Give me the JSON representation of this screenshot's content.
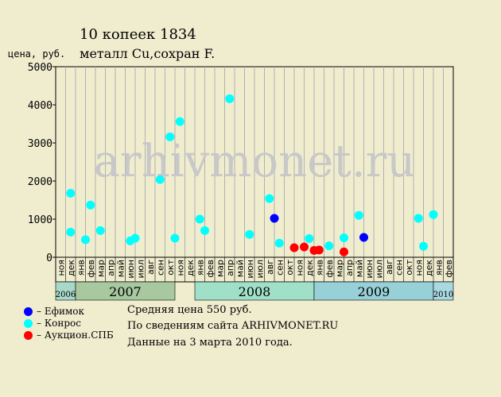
{
  "chart_data": {
    "type": "scatter",
    "title": "10 копеек 1834",
    "subtitle": "металл Cu,сохран F.",
    "ylabel": "цена, руб.",
    "ylim": [
      0,
      5000
    ],
    "yticks": [
      0,
      1000,
      2000,
      3000,
      4000,
      5000
    ],
    "watermark": "arhivmonet.ru",
    "months": [
      "ноя",
      "дек",
      "янв",
      "фев",
      "мар",
      "апр",
      "май",
      "июн",
      "июл",
      "авг",
      "сен",
      "окт",
      "ноя",
      "дек",
      "янв",
      "фев",
      "мар",
      "апр",
      "май",
      "июн",
      "июл",
      "авг",
      "сен",
      "окт",
      "ноя",
      "дек",
      "янв",
      "фев",
      "мар",
      "апр",
      "май",
      "июн",
      "июл",
      "авг",
      "сен",
      "окт",
      "ноя",
      "дек",
      "янв",
      "фев"
    ],
    "years": [
      {
        "label": "2006",
        "start": 0,
        "end": 2,
        "color": "#a8d8c8",
        "small": true
      },
      {
        "label": "2007",
        "start": 2,
        "end": 12,
        "color": "#a8c8a0",
        "small": false
      },
      {
        "label": "2008",
        "start": 14,
        "end": 26,
        "color": "#a0e0c8",
        "small": false
      },
      {
        "label": "2009",
        "start": 26,
        "end": 38,
        "color": "#98d0d8",
        "small": false
      },
      {
        "label": "2010",
        "start": 38,
        "end": 40,
        "color": "#a8d8e0",
        "small": true
      }
    ],
    "series": [
      {
        "name": "Ефимок",
        "color": "#0000ff",
        "points": [
          [
            21.5,
            1020
          ],
          [
            30.5,
            520
          ]
        ]
      },
      {
        "name": "Конрос",
        "color": "#00ffff",
        "points": [
          [
            1,
            1680
          ],
          [
            1,
            660
          ],
          [
            2.5,
            460
          ],
          [
            3,
            1370
          ],
          [
            4,
            700
          ],
          [
            7,
            430
          ],
          [
            7.5,
            500
          ],
          [
            10,
            2040
          ],
          [
            11,
            3160
          ],
          [
            11.5,
            500
          ],
          [
            12,
            3560
          ],
          [
            14,
            1000
          ],
          [
            14.5,
            700
          ],
          [
            17,
            4160
          ],
          [
            19,
            600
          ],
          [
            21,
            1540
          ],
          [
            22,
            370
          ],
          [
            25,
            490
          ],
          [
            27,
            300
          ],
          [
            30,
            1100
          ],
          [
            28.5,
            510
          ],
          [
            36,
            1020
          ],
          [
            36.5,
            290
          ],
          [
            37.5,
            1120
          ]
        ]
      },
      {
        "name": "Аукцион.СПБ",
        "color": "#ff0000",
        "points": [
          [
            23.5,
            250
          ],
          [
            24.5,
            270
          ],
          [
            25.5,
            180
          ],
          [
            26,
            190
          ],
          [
            28.5,
            140
          ]
        ]
      }
    ]
  },
  "legend": [
    {
      "label": "– Ефимок",
      "color": "#0000ff"
    },
    {
      "label": "– Конрос",
      "color": "#00ffff"
    },
    {
      "label": "– Аукцион.СПБ",
      "color": "#ff0000"
    }
  ],
  "info": {
    "avg": "Средняя цена 550 руб.",
    "source": "По сведениям сайта ARHIVMONET.RU",
    "date": "Данные на 3 марта 2010 года."
  }
}
